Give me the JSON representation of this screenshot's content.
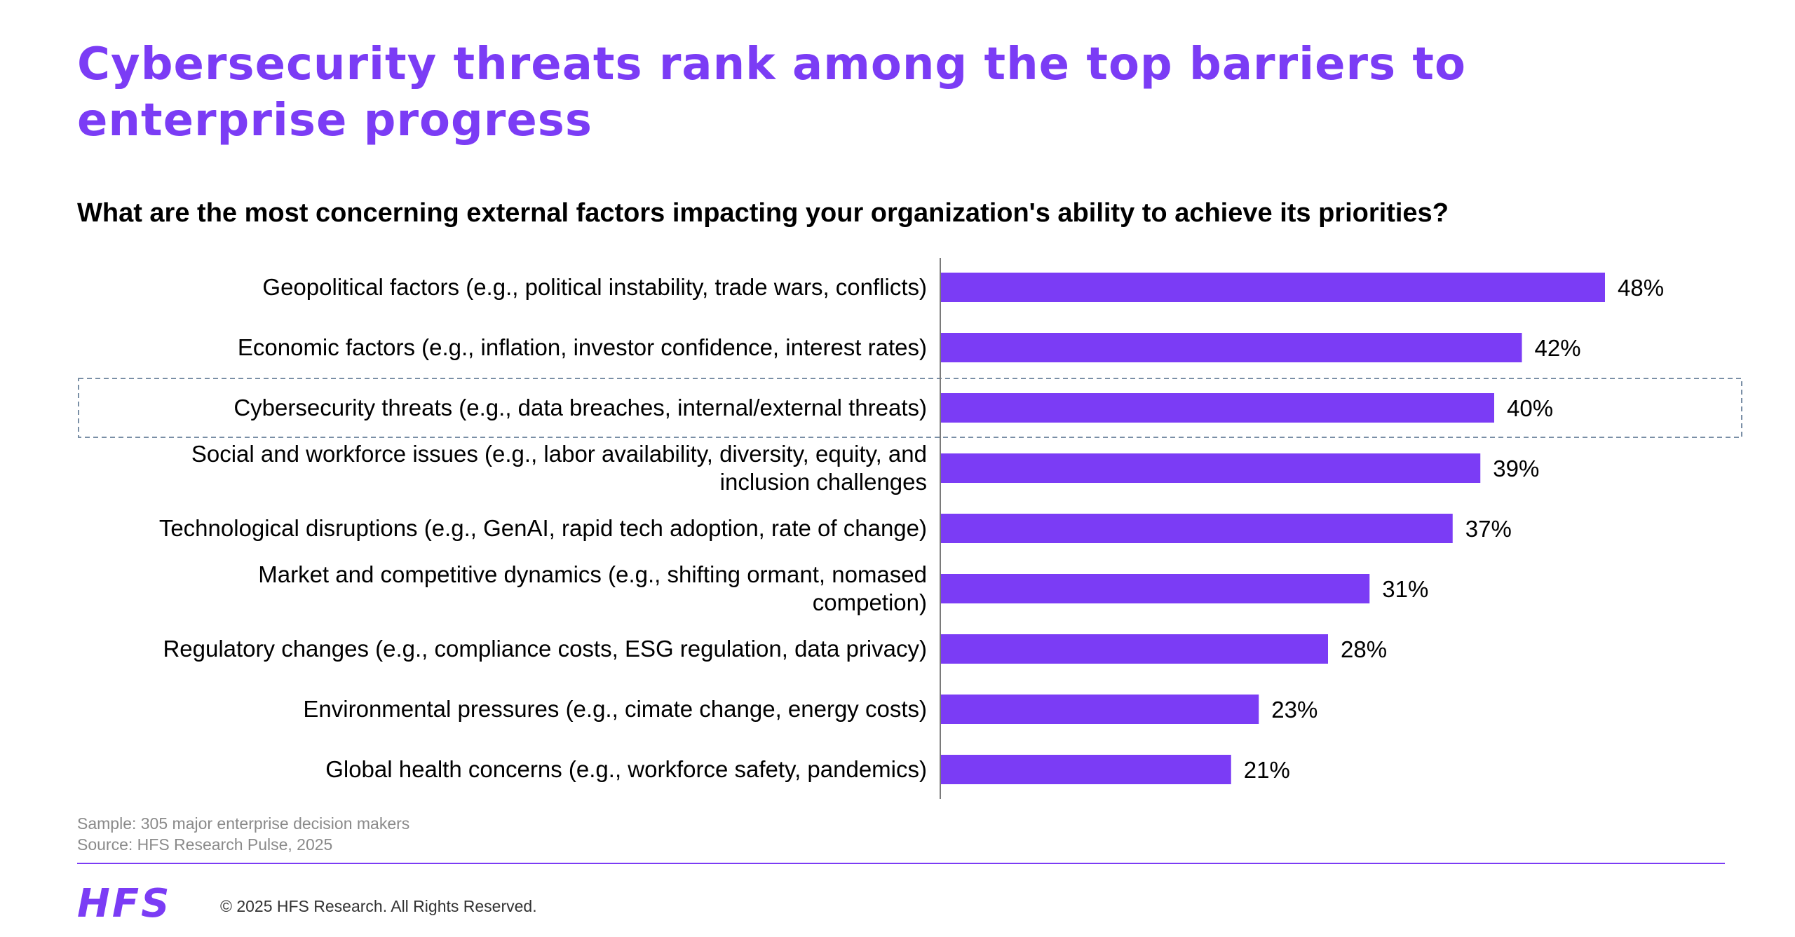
{
  "colors": {
    "accent": "#7b3cf5",
    "text": "#000000",
    "muted": "#8a8a8a",
    "highlight_border": "#7a8fa6",
    "axis": "#7a7a7a"
  },
  "header": {
    "title": "Cybersecurity threats rank among the top barriers to enterprise progress",
    "question": "What are the most concerning external factors impacting your organization's ability to achieve its priorities?"
  },
  "chart_data": {
    "type": "bar",
    "orientation": "horizontal",
    "value_suffix": "%",
    "xlim": [
      0,
      48
    ],
    "grid": false,
    "legend": "none",
    "highlighted_category": "Cybersecurity threats (e.g., data breaches, internal/external threats)",
    "categories": [
      "Geopolitical factors (e.g., political instability, trade wars, conflicts)",
      "Economic factors (e.g., inflation, investor confidence, interest rates)",
      "Cybersecurity threats (e.g., data breaches, internal/external threats)",
      "Social and workforce issues (e.g., labor availability, diversity, equity, and inclusion challenges",
      "Technological disruptions (e.g., GenAI, rapid tech adoption, rate of change)",
      "Market and competitive dynamics (e.g., shifting ormant, nomased competion)",
      "Regulatory changes (e.g., compliance costs, ESG regulation, data privacy)",
      "Environmental pressures (e.g., cimate change, energy costs)",
      "Global health concerns (e.g., workforce safety, pandemics)"
    ],
    "label_lines": [
      [
        "Geopolitical factors (e.g., political instability, trade wars, conflicts)"
      ],
      [
        "Economic factors (e.g., inflation, investor confidence, interest rates)"
      ],
      [
        "Cybersecurity threats (e.g., data breaches, internal/external threats)"
      ],
      [
        "Social and workforce issues (e.g., labor availability, diversity, equity, and",
        "inclusion challenges"
      ],
      [
        "Technological disruptions (e.g., GenAI, rapid tech adoption, rate of change)"
      ],
      [
        "Market and competitive dynamics (e.g., shifting ormant, nomased",
        "competion)"
      ],
      [
        "Regulatory changes (e.g., compliance costs, ESG regulation, data privacy)"
      ],
      [
        "Environmental pressures (e.g., cimate change, energy costs)"
      ],
      [
        "Global health concerns (e.g., workforce safety, pandemics)"
      ]
    ],
    "values": [
      48,
      42,
      40,
      39,
      37,
      31,
      28,
      23,
      21
    ],
    "data_labels": [
      "48%",
      "42%",
      "40%",
      "39%",
      "37%",
      "31%",
      "28%",
      "23%",
      "21%"
    ]
  },
  "footer": {
    "sample": "Sample: 305 major enterprise decision makers",
    "source": "Source: HFS Research Pulse, 2025",
    "logo": "HFS",
    "copyright": "© 2025 HFS Research.  All Rights Reserved."
  }
}
